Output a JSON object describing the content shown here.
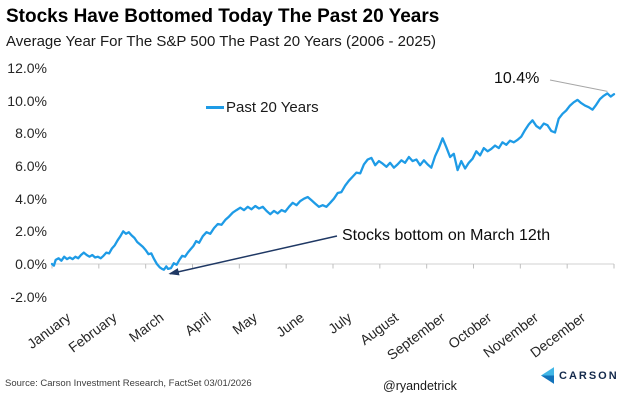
{
  "colors": {
    "line": "#1E9BE6",
    "arrow_navy": "#1F3864",
    "baseline_gray": "#D9D9D9",
    "tick_gray": "#BFBFBF",
    "leader_gray": "#A6A6A6",
    "brand_navy": "#13294B",
    "brand_light_blue": "#41B6E6",
    "brand_mid_blue": "#1272BA"
  },
  "footer": {
    "source": "Source: Carson Investment Research, FactSet 03/01/2026",
    "handle": "@ryandetrick",
    "brand": "CARSON"
  },
  "chart_data": {
    "type": "line",
    "title": "Stocks Have Bottomed Today The Past 20 Years",
    "subtitle": "Average Year For The S&P 500 The Past 20 Years (2006 - 2025)",
    "xlabel": "",
    "ylabel": "",
    "x_unit": "month fraction (0 = Jan 1, 12 = Dec 31)",
    "categories": [
      "January",
      "February",
      "March",
      "April",
      "May",
      "June",
      "July",
      "August",
      "September",
      "October",
      "November",
      "December"
    ],
    "y_ticks": [
      -2,
      0,
      2,
      4,
      6,
      8,
      10,
      12
    ],
    "y_tick_labels": [
      "-2.0%",
      "0.0%",
      "2.0%",
      "4.0%",
      "6.0%",
      "8.0%",
      "10.0%",
      "12.0%"
    ],
    "ylim": [
      -2.9,
      12.5
    ],
    "grid": "zero-baseline-only",
    "legend_position": "top-center",
    "annotations": [
      {
        "id": "end-value-label",
        "text": "10.4%",
        "x": 12.0,
        "y": 10.4
      },
      {
        "id": "bottom-callout",
        "text": "Stocks bottom on March 12th",
        "target_x": 2.39,
        "target_y": -0.35
      }
    ],
    "series": [
      {
        "name": "Past 20 Years",
        "color": "#1E9BE6",
        "points": [
          [
            0.0,
            0.0
          ],
          [
            0.04,
            -0.1
          ],
          [
            0.08,
            0.25
          ],
          [
            0.14,
            0.35
          ],
          [
            0.2,
            0.2
          ],
          [
            0.26,
            0.45
          ],
          [
            0.32,
            0.3
          ],
          [
            0.38,
            0.4
          ],
          [
            0.44,
            0.3
          ],
          [
            0.5,
            0.45
          ],
          [
            0.56,
            0.35
          ],
          [
            0.62,
            0.55
          ],
          [
            0.68,
            0.7
          ],
          [
            0.74,
            0.55
          ],
          [
            0.8,
            0.45
          ],
          [
            0.86,
            0.55
          ],
          [
            0.92,
            0.4
          ],
          [
            0.98,
            0.45
          ],
          [
            1.04,
            0.35
          ],
          [
            1.1,
            0.5
          ],
          [
            1.16,
            0.7
          ],
          [
            1.22,
            0.65
          ],
          [
            1.28,
            0.95
          ],
          [
            1.34,
            1.15
          ],
          [
            1.4,
            1.45
          ],
          [
            1.46,
            1.7
          ],
          [
            1.52,
            2.0
          ],
          [
            1.58,
            1.85
          ],
          [
            1.64,
            1.95
          ],
          [
            1.7,
            1.75
          ],
          [
            1.76,
            1.6
          ],
          [
            1.82,
            1.35
          ],
          [
            1.88,
            1.2
          ],
          [
            1.94,
            1.05
          ],
          [
            2.0,
            0.85
          ],
          [
            2.06,
            0.6
          ],
          [
            2.12,
            0.65
          ],
          [
            2.18,
            0.3
          ],
          [
            2.24,
            0.0
          ],
          [
            2.3,
            -0.2
          ],
          [
            2.35,
            -0.3
          ],
          [
            2.39,
            -0.35
          ],
          [
            2.44,
            -0.15
          ],
          [
            2.48,
            -0.3
          ],
          [
            2.54,
            -0.25
          ],
          [
            2.6,
            0.05
          ],
          [
            2.66,
            -0.05
          ],
          [
            2.72,
            0.25
          ],
          [
            2.78,
            0.5
          ],
          [
            2.84,
            0.45
          ],
          [
            2.9,
            0.7
          ],
          [
            2.96,
            0.9
          ],
          [
            3.02,
            1.1
          ],
          [
            3.08,
            1.4
          ],
          [
            3.14,
            1.3
          ],
          [
            3.22,
            1.7
          ],
          [
            3.3,
            1.95
          ],
          [
            3.38,
            1.85
          ],
          [
            3.46,
            2.2
          ],
          [
            3.54,
            2.45
          ],
          [
            3.62,
            2.4
          ],
          [
            3.7,
            2.7
          ],
          [
            3.78,
            2.9
          ],
          [
            3.86,
            3.15
          ],
          [
            3.94,
            3.3
          ],
          [
            4.02,
            3.45
          ],
          [
            4.1,
            3.3
          ],
          [
            4.18,
            3.5
          ],
          [
            4.26,
            3.35
          ],
          [
            4.34,
            3.55
          ],
          [
            4.42,
            3.4
          ],
          [
            4.5,
            3.5
          ],
          [
            4.58,
            3.25
          ],
          [
            4.66,
            3.05
          ],
          [
            4.74,
            3.25
          ],
          [
            4.82,
            3.1
          ],
          [
            4.9,
            3.3
          ],
          [
            4.98,
            3.2
          ],
          [
            5.06,
            3.5
          ],
          [
            5.14,
            3.75
          ],
          [
            5.22,
            3.6
          ],
          [
            5.3,
            3.85
          ],
          [
            5.38,
            4.0
          ],
          [
            5.46,
            4.1
          ],
          [
            5.54,
            3.9
          ],
          [
            5.62,
            3.7
          ],
          [
            5.7,
            3.5
          ],
          [
            5.78,
            3.6
          ],
          [
            5.86,
            3.5
          ],
          [
            5.94,
            3.75
          ],
          [
            6.02,
            4.0
          ],
          [
            6.1,
            4.35
          ],
          [
            6.18,
            4.4
          ],
          [
            6.26,
            4.8
          ],
          [
            6.34,
            5.1
          ],
          [
            6.42,
            5.35
          ],
          [
            6.5,
            5.6
          ],
          [
            6.58,
            5.55
          ],
          [
            6.66,
            6.1
          ],
          [
            6.74,
            6.4
          ],
          [
            6.82,
            6.5
          ],
          [
            6.9,
            6.05
          ],
          [
            6.98,
            6.3
          ],
          [
            7.06,
            6.15
          ],
          [
            7.14,
            5.95
          ],
          [
            7.22,
            6.2
          ],
          [
            7.3,
            5.9
          ],
          [
            7.38,
            6.1
          ],
          [
            7.46,
            6.35
          ],
          [
            7.54,
            6.2
          ],
          [
            7.62,
            6.55
          ],
          [
            7.7,
            6.3
          ],
          [
            7.78,
            6.4
          ],
          [
            7.86,
            6.05
          ],
          [
            7.94,
            6.35
          ],
          [
            8.02,
            6.1
          ],
          [
            8.1,
            5.9
          ],
          [
            8.18,
            6.6
          ],
          [
            8.26,
            7.1
          ],
          [
            8.34,
            7.7
          ],
          [
            8.42,
            7.15
          ],
          [
            8.5,
            6.55
          ],
          [
            8.58,
            6.75
          ],
          [
            8.66,
            5.75
          ],
          [
            8.74,
            6.3
          ],
          [
            8.82,
            5.85
          ],
          [
            8.9,
            6.2
          ],
          [
            8.98,
            6.45
          ],
          [
            9.06,
            6.9
          ],
          [
            9.14,
            6.65
          ],
          [
            9.22,
            7.1
          ],
          [
            9.3,
            6.9
          ],
          [
            9.38,
            7.05
          ],
          [
            9.46,
            7.25
          ],
          [
            9.54,
            7.1
          ],
          [
            9.62,
            7.45
          ],
          [
            9.7,
            7.3
          ],
          [
            9.78,
            7.55
          ],
          [
            9.86,
            7.45
          ],
          [
            9.94,
            7.6
          ],
          [
            10.02,
            7.8
          ],
          [
            10.1,
            8.2
          ],
          [
            10.18,
            8.55
          ],
          [
            10.26,
            8.8
          ],
          [
            10.34,
            8.45
          ],
          [
            10.42,
            8.3
          ],
          [
            10.5,
            8.6
          ],
          [
            10.58,
            8.5
          ],
          [
            10.66,
            8.15
          ],
          [
            10.74,
            8.05
          ],
          [
            10.82,
            8.9
          ],
          [
            10.9,
            9.2
          ],
          [
            10.98,
            9.4
          ],
          [
            11.06,
            9.7
          ],
          [
            11.14,
            9.9
          ],
          [
            11.22,
            10.05
          ],
          [
            11.3,
            9.85
          ],
          [
            11.38,
            9.7
          ],
          [
            11.46,
            9.6
          ],
          [
            11.54,
            9.45
          ],
          [
            11.62,
            9.75
          ],
          [
            11.7,
            10.1
          ],
          [
            11.78,
            10.3
          ],
          [
            11.86,
            10.45
          ],
          [
            11.93,
            10.25
          ],
          [
            12.0,
            10.4
          ]
        ]
      }
    ]
  }
}
